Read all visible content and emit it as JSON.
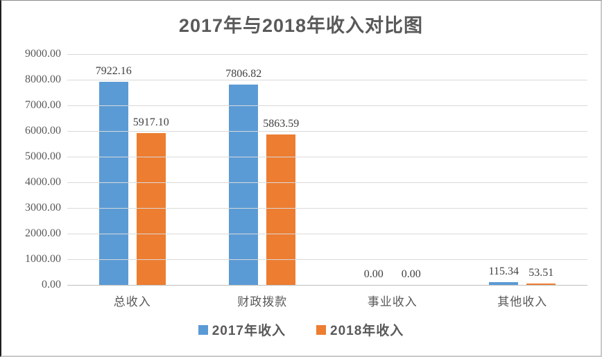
{
  "chart_data": {
    "type": "bar",
    "title": "2017年与2018年收入对比图",
    "categories": [
      "总收入",
      "财政拨款",
      "事业收入",
      "其他收入"
    ],
    "series": [
      {
        "name": "2017年收入",
        "color": "#5B9BD5",
        "values": [
          7922.16,
          7806.82,
          0.0,
          115.34
        ],
        "labels": [
          "7922.16",
          "7806.82",
          "0.00",
          "115.34"
        ]
      },
      {
        "name": "2018年收入",
        "color": "#ED7D31",
        "values": [
          5917.1,
          5863.59,
          0.0,
          53.51
        ],
        "labels": [
          "5917.10",
          "5863.59",
          "0.00",
          "53.51"
        ]
      }
    ],
    "xlabel": "",
    "ylabel": "",
    "ylim": [
      0,
      9000
    ],
    "ytick_step": 1000,
    "yticks": [
      "0.00",
      "1000.00",
      "2000.00",
      "3000.00",
      "4000.00",
      "5000.00",
      "6000.00",
      "7000.00",
      "8000.00",
      "9000.00"
    ],
    "grid": true,
    "legend_position": "bottom",
    "colors": {
      "gridline": "#D9D9D9",
      "axis_line": "#BFBFBF",
      "title_text": "#595959",
      "value_label_text": "#404040",
      "tick_text": "#595959"
    }
  }
}
